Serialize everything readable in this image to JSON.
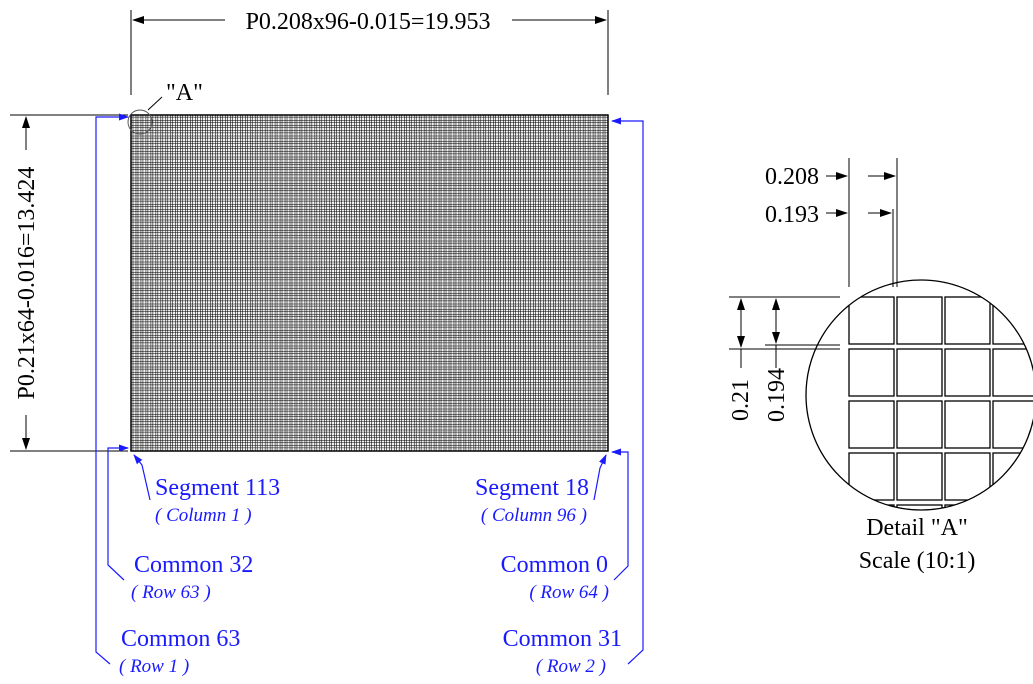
{
  "dimensions": {
    "width_label": "P0.208x96-0.015=19.953",
    "height_label": "P0.21x64-0.016=13.424",
    "detail_marker": "\"A\""
  },
  "labels": {
    "segment_left": "Segment 113",
    "segment_left_sub": "( Column 1 )",
    "segment_right": "Segment 18",
    "segment_right_sub": "( Column 96 )",
    "common_32": "Common 32",
    "common_32_sub": "( Row 63 )",
    "common_0": "Common 0",
    "common_0_sub": "( Row 64 )",
    "common_63": "Common 63",
    "common_63_sub": "( Row 1 )",
    "common_31": "Common 31",
    "common_31_sub": "( Row 2 )"
  },
  "detail": {
    "pitch_x": "0.208",
    "dot_x": "0.193",
    "pitch_y": "0.21",
    "dot_y": "0.194",
    "title": "Detail \"A\"",
    "scale": "Scale (10:1)"
  },
  "colors": {
    "outline": "#000000",
    "leader": "#1a1aff"
  }
}
